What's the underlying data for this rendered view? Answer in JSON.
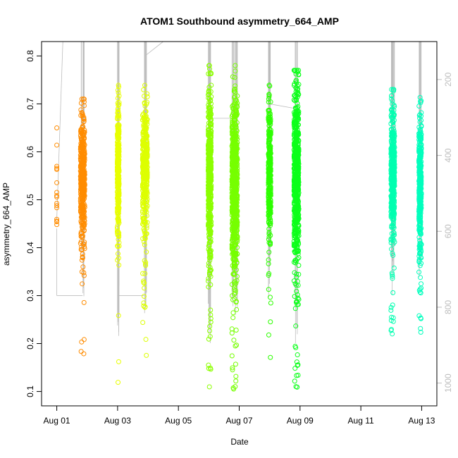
{
  "chart_data": {
    "type": "scatter",
    "title": "ATOM1 Southbound asymmetry_664_AMP",
    "xlabel": "Date",
    "ylabel": "asymmetry_664_AMP",
    "x_unit": "date (2023, day-of-August)",
    "xlim": [
      "Jul 31 12:00",
      "Aug 13 12:00"
    ],
    "ylim": [
      0.07,
      0.83
    ],
    "x_ticks": [
      {
        "day": 1,
        "label": "Aug 01"
      },
      {
        "day": 3,
        "label": "Aug 03"
      },
      {
        "day": 5,
        "label": "Aug 05"
      },
      {
        "day": 7,
        "label": "Aug 07"
      },
      {
        "day": 9,
        "label": "Aug 09"
      },
      {
        "day": 11,
        "label": "Aug 11"
      },
      {
        "day": 13,
        "label": "Aug 13"
      }
    ],
    "y_ticks": [
      0.1,
      0.2,
      0.3,
      0.4,
      0.5,
      0.6,
      0.7,
      0.8
    ],
    "secondary_y": {
      "reversed": true,
      "ylim": [
        1060,
        100
      ],
      "ticks": [
        200,
        400,
        600,
        800,
        1000
      ],
      "color": "#bdbdbd"
    },
    "grid": false,
    "legend": "none",
    "series": [
      {
        "day_center": 1.85,
        "day_spread": 0.07,
        "y_center": 0.545,
        "y_spread": 0.065,
        "y_min": 0.17,
        "y_max": 0.71,
        "n": 420,
        "color": "#ff8c00"
      },
      {
        "day_center": 3.02,
        "day_spread": 0.03,
        "y_center": 0.56,
        "y_spread": 0.075,
        "y_min": 0.09,
        "y_max": 0.8,
        "n": 300,
        "color": "#e8ff00"
      },
      {
        "day_center": 3.9,
        "day_spread": 0.08,
        "y_center": 0.56,
        "y_spread": 0.065,
        "y_min": 0.16,
        "y_max": 0.75,
        "n": 420,
        "color": "#ddff00"
      },
      {
        "day_center": 6.03,
        "day_spread": 0.05,
        "y_center": 0.55,
        "y_spread": 0.085,
        "y_min": 0.1,
        "y_max": 0.78,
        "n": 520,
        "color": "#8cff00"
      },
      {
        "day_center": 6.85,
        "day_spread": 0.09,
        "y_center": 0.53,
        "y_spread": 0.095,
        "y_min": 0.1,
        "y_max": 0.78,
        "n": 720,
        "color": "#76ff00"
      },
      {
        "day_center": 8.0,
        "day_spread": 0.04,
        "y_center": 0.56,
        "y_spread": 0.075,
        "y_min": 0.16,
        "y_max": 0.76,
        "n": 300,
        "color": "#2dff00"
      },
      {
        "day_center": 8.88,
        "day_spread": 0.08,
        "y_center": 0.55,
        "y_spread": 0.095,
        "y_min": 0.1,
        "y_max": 0.77,
        "n": 680,
        "color": "#0cff1a"
      },
      {
        "day_center": 12.05,
        "day_spread": 0.06,
        "y_center": 0.56,
        "y_spread": 0.065,
        "y_min": 0.2,
        "y_max": 0.73,
        "n": 460,
        "color": "#00ffb0"
      },
      {
        "day_center": 12.95,
        "day_spread": 0.04,
        "y_center": 0.53,
        "y_spread": 0.07,
        "y_min": 0.22,
        "y_max": 0.77,
        "n": 380,
        "color": "#00ffbd"
      },
      {
        "day_center": 1.0,
        "day_spread": 0.0,
        "y_center": 0.58,
        "y_spread": 0.08,
        "y_min": 0.44,
        "y_max": 0.69,
        "n": 16,
        "color": "#ff8c00"
      }
    ]
  }
}
